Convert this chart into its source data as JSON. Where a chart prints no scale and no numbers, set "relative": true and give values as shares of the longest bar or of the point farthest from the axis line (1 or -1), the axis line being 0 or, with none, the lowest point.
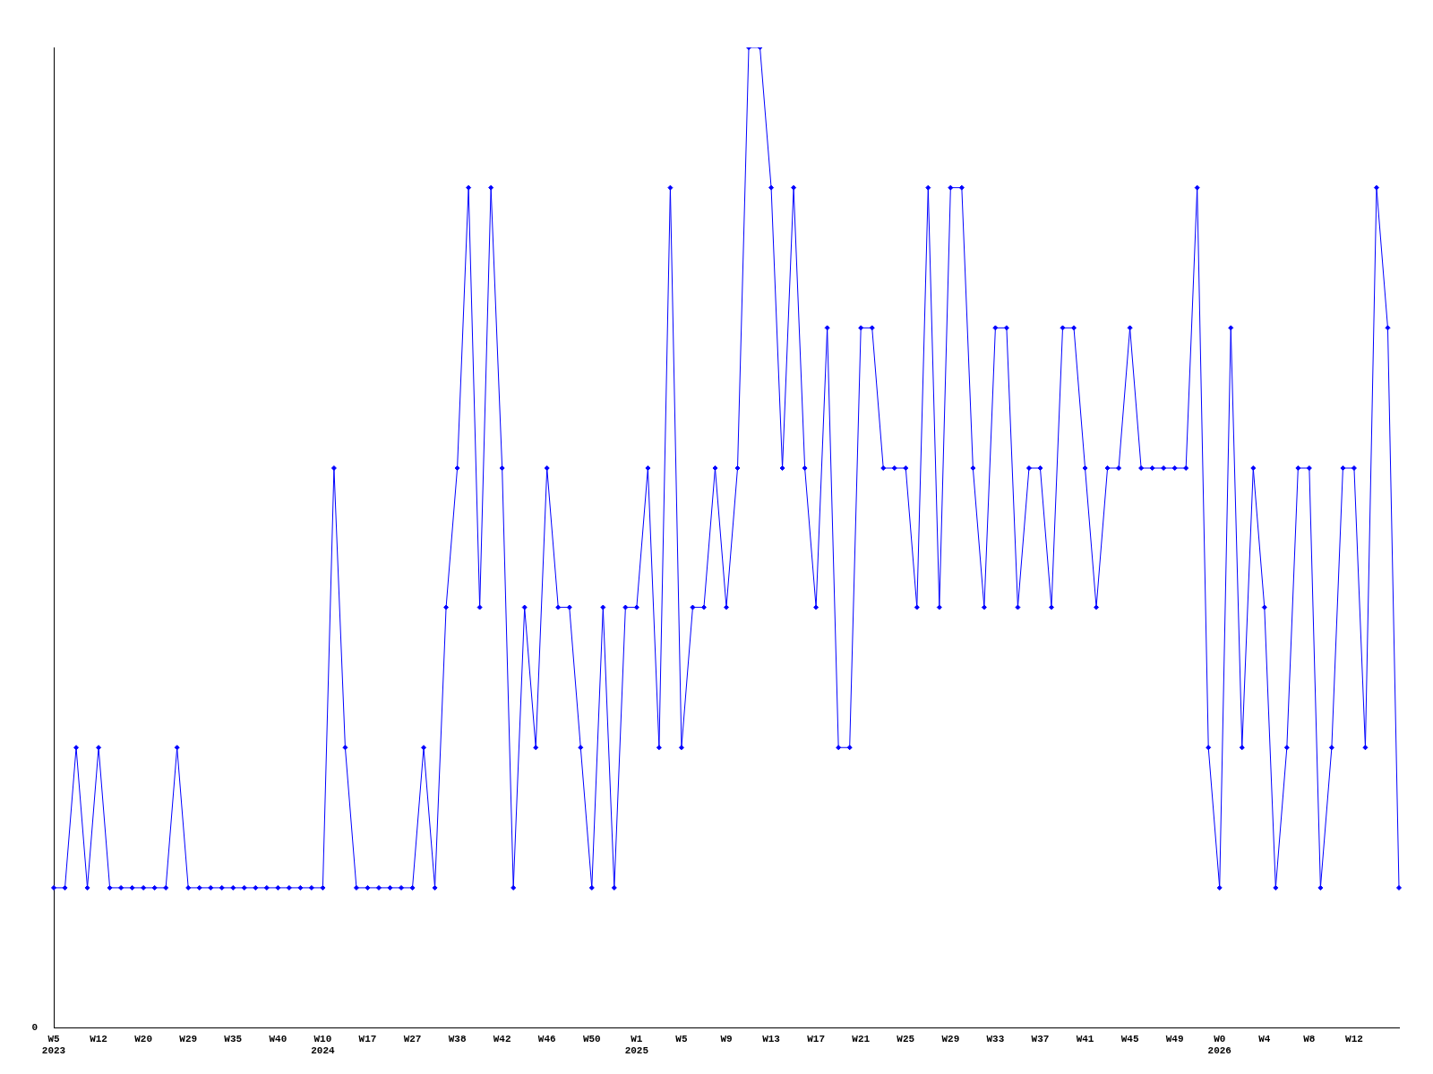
{
  "chart_data": {
    "type": "line",
    "relative": true,
    "marker": "diamond",
    "grid": false,
    "legend": false,
    "annotations": [
      "0"
    ],
    "categories": [
      "W5\n2023",
      null,
      null,
      null,
      "W12",
      null,
      null,
      null,
      "W20",
      null,
      null,
      null,
      "W29",
      null,
      null,
      null,
      "W35",
      null,
      null,
      null,
      "W40",
      null,
      null,
      null,
      "W10\n2024",
      null,
      null,
      null,
      "W17",
      null,
      null,
      null,
      "W27",
      null,
      null,
      null,
      "W38",
      null,
      null,
      null,
      "W42",
      null,
      null,
      null,
      "W46",
      null,
      null,
      null,
      "W50",
      null,
      null,
      null,
      "W1\n2025",
      null,
      null,
      null,
      "W5",
      null,
      null,
      null,
      "W9",
      null,
      null,
      null,
      "W13",
      null,
      null,
      null,
      "W17",
      null,
      null,
      null,
      "W21",
      null,
      null,
      null,
      "W25",
      null,
      null,
      null,
      "W29",
      null,
      null,
      null,
      "W33",
      null,
      null,
      null,
      "W37",
      null,
      null,
      null,
      "W41",
      null,
      null,
      null,
      "W45",
      null,
      null,
      null,
      "W49",
      null,
      null,
      null,
      "W0\n2026",
      null,
      null,
      null,
      "W4",
      null,
      null,
      null,
      "W8",
      null,
      null,
      null,
      "W12",
      null,
      null,
      null,
      null
    ],
    "series": [
      {
        "color": "#0000ff",
        "values": [
          0.143,
          0.143,
          0.286,
          0.143,
          0.286,
          0.143,
          0.143,
          0.143,
          0.143,
          0.143,
          0.143,
          0.286,
          0.143,
          0.143,
          0.143,
          0.143,
          0.143,
          0.143,
          0.143,
          0.143,
          0.143,
          0.143,
          0.143,
          0.143,
          0.143,
          0.571,
          0.286,
          0.143,
          0.143,
          0.143,
          0.143,
          0.143,
          0.143,
          0.286,
          0.143,
          0.429,
          0.571,
          0.857,
          0.429,
          0.857,
          0.571,
          0.143,
          0.429,
          0.286,
          0.571,
          0.429,
          0.429,
          0.286,
          0.143,
          0.429,
          0.143,
          0.429,
          0.429,
          0.571,
          0.286,
          0.857,
          0.286,
          0.429,
          0.429,
          0.571,
          0.429,
          0.571,
          1,
          1,
          0.857,
          0.571,
          0.857,
          0.571,
          0.429,
          0.714,
          0.286,
          0.286,
          0.714,
          0.714,
          0.571,
          0.571,
          0.571,
          0.429,
          0.857,
          0.429,
          0.857,
          0.857,
          0.571,
          0.429,
          0.714,
          0.714,
          0.429,
          0.571,
          0.571,
          0.429,
          0.714,
          0.714,
          0.571,
          0.429,
          0.571,
          0.571,
          0.714,
          0.571,
          0.571,
          0.571,
          0.571,
          0.571,
          0.857,
          0.286,
          0.143,
          0.714,
          0.286,
          0.571,
          0.429,
          0.143,
          0.286,
          0.571,
          0.571,
          0.143,
          0.286,
          0.571,
          0.571,
          0.286,
          0.857,
          0.714,
          0.143
        ]
      }
    ]
  }
}
